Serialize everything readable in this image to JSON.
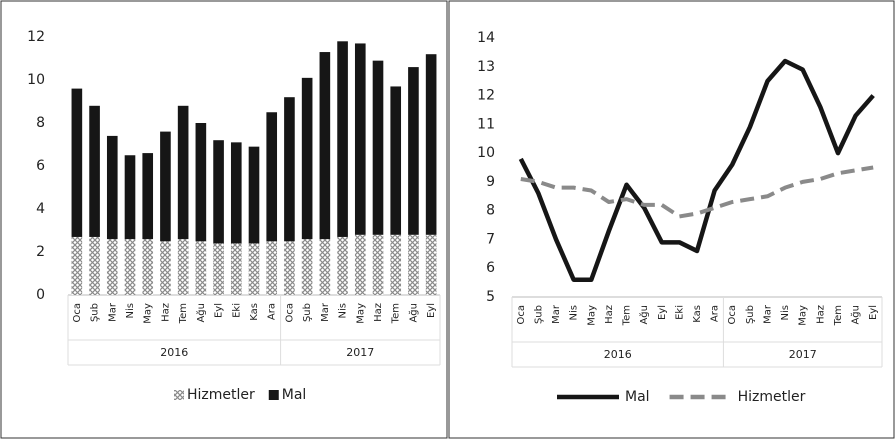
{
  "chart_data": [
    {
      "type": "bar",
      "stacked": true,
      "groups": [
        {
          "label": "2016",
          "categories": [
            "Oca",
            "Şub",
            "Mar",
            "Nis",
            "May",
            "Haz",
            "Tem",
            "Ağu",
            "Eyl",
            "Eki",
            "Kas",
            "Ara"
          ]
        },
        {
          "label": "2017",
          "categories": [
            "Oca",
            "Şub",
            "Mar",
            "Nis",
            "May",
            "Haz",
            "Tem",
            "Ağu",
            "Eyl"
          ]
        }
      ],
      "series": [
        {
          "name": "Hizmetler",
          "color": "#8a8a8a",
          "hatch": true,
          "values": [
            2.7,
            2.7,
            2.6,
            2.6,
            2.6,
            2.5,
            2.6,
            2.5,
            2.4,
            2.4,
            2.4,
            2.5,
            2.5,
            2.6,
            2.6,
            2.7,
            2.8,
            2.8,
            2.8,
            2.8,
            2.8
          ]
        },
        {
          "name": "Mal",
          "color": "#161616",
          "hatch": false,
          "values": [
            6.9,
            6.1,
            4.8,
            3.9,
            4.0,
            5.1,
            6.2,
            5.5,
            4.8,
            4.7,
            4.5,
            6.0,
            6.7,
            7.5,
            8.7,
            9.1,
            8.9,
            8.1,
            6.9,
            7.8,
            8.4
          ]
        }
      ],
      "ylim": [
        0,
        12
      ],
      "yticks": [
        0,
        2,
        4,
        6,
        8,
        10,
        12
      ],
      "legend": "bottom"
    },
    {
      "type": "line",
      "groups": [
        {
          "label": "2016",
          "categories": [
            "Oca",
            "Şub",
            "Mar",
            "Nis",
            "May",
            "Haz",
            "Tem",
            "Ağu",
            "Eyl",
            "Eki",
            "Kas",
            "Ara"
          ]
        },
        {
          "label": "2017",
          "categories": [
            "Oca",
            "Şub",
            "Mar",
            "Nis",
            "May",
            "Haz",
            "Tem",
            "Ağu",
            "Eyl"
          ]
        }
      ],
      "series": [
        {
          "name": "Mal",
          "color": "#161616",
          "dashed": false,
          "values": [
            9.8,
            8.6,
            7.0,
            5.6,
            5.6,
            7.3,
            8.9,
            8.1,
            6.9,
            6.9,
            6.6,
            8.7,
            9.6,
            10.9,
            12.5,
            13.2,
            12.9,
            11.6,
            10.0,
            11.3,
            12.0
          ]
        },
        {
          "name": "Hizmetler",
          "color": "#8a8a8a",
          "dashed": true,
          "values": [
            9.1,
            9.0,
            8.8,
            8.8,
            8.7,
            8.3,
            8.4,
            8.2,
            8.2,
            7.8,
            7.9,
            8.1,
            8.3,
            8.4,
            8.5,
            8.8,
            9.0,
            9.1,
            9.3,
            9.4,
            9.5
          ]
        }
      ],
      "ylim": [
        5,
        14
      ],
      "yticks": [
        5,
        6,
        7,
        8,
        9,
        10,
        11,
        12,
        13,
        14
      ],
      "legend": "bottom"
    }
  ]
}
